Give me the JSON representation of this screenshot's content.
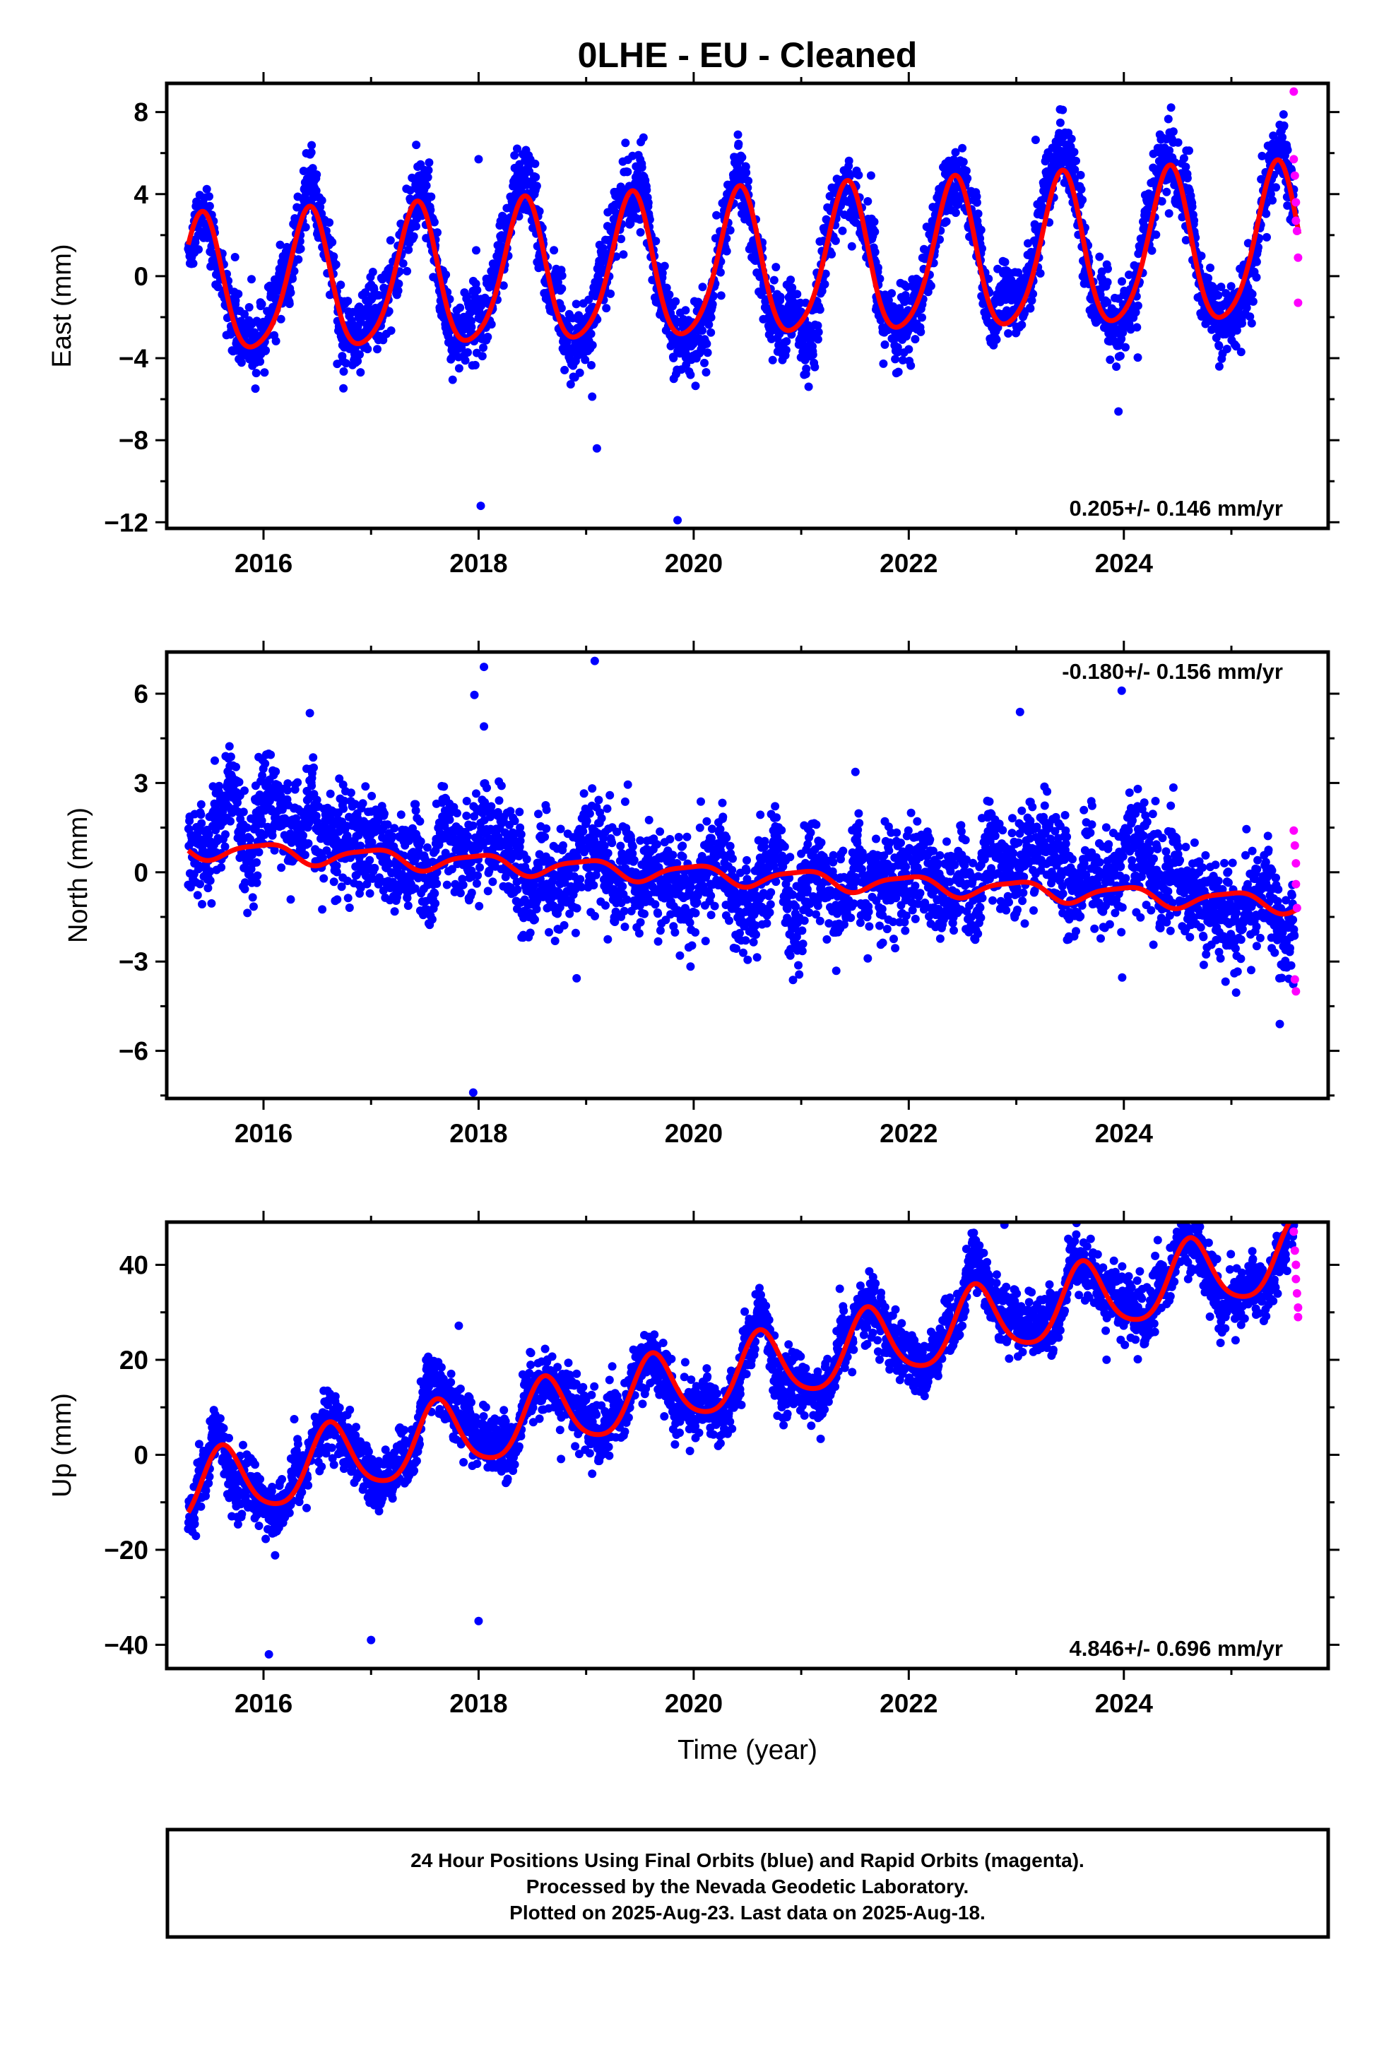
{
  "title": "0LHE  - EU - Cleaned",
  "xlabel": "Time (year)",
  "footer": {
    "line1": "24 Hour Positions Using Final Orbits (blue) and Rapid Orbits (magenta).",
    "line2": "Processed by the Nevada Geodetic Laboratory.",
    "line3": "Plotted on 2025-Aug-23. Last data on 2025-Aug-18."
  },
  "colors": {
    "final": "#0000ff",
    "rapid": "#ff00ff",
    "model": "#ff0000",
    "frame": "#000000"
  },
  "chart_data": [
    {
      "type": "scatter",
      "ylabel": "East (mm)",
      "rate": "0.205+/- 0.146 mm/yr",
      "rate_position": "bottom-right",
      "xlim": [
        2015.1,
        2025.9
      ],
      "ylim": [
        -12.3,
        9.4
      ],
      "xticks": [
        2016,
        2018,
        2020,
        2022,
        2024
      ],
      "yticks": [
        8,
        4,
        0,
        -4,
        -8,
        -12
      ],
      "time_span": [
        2015.3,
        2025.63
      ],
      "model": {
        "offset": -0.7,
        "trend": 0.205,
        "annual_amp": 3.3,
        "annual_peak": 0.42,
        "semiannual_amp": 0.55,
        "semiannual_peak": 0.45,
        "amp_growth": 0.14
      },
      "scatter_sd": 0.95,
      "outliers": [
        [
          2018.0,
          5.7
        ],
        [
          2018.02,
          -11.2
        ],
        [
          2019.85,
          -11.9
        ],
        [
          2017.42,
          6.4
        ],
        [
          2019.1,
          -8.4
        ],
        [
          2023.95,
          -6.6
        ]
      ],
      "rapid_points": [
        [
          2025.58,
          9.0
        ],
        [
          2025.58,
          5.7
        ],
        [
          2025.59,
          4.9
        ],
        [
          2025.6,
          3.6
        ],
        [
          2025.6,
          2.7
        ],
        [
          2025.61,
          2.2
        ],
        [
          2025.62,
          0.9
        ],
        [
          2025.62,
          -1.3
        ]
      ]
    },
    {
      "type": "scatter",
      "ylabel": "North (mm)",
      "rate": "-0.180+/- 0.156 mm/yr",
      "rate_position": "top-right",
      "xlim": [
        2015.1,
        2025.9
      ],
      "ylim": [
        -7.6,
        7.4
      ],
      "xticks": [
        2016,
        2018,
        2020,
        2022,
        2024
      ],
      "yticks": [
        6,
        3,
        0,
        -3,
        -6
      ],
      "time_span": [
        2015.3,
        2025.63
      ],
      "model": {
        "offset": 0.8,
        "trend": -0.18,
        "annual_amp": 0.3,
        "annual_peak": 0.0,
        "semiannual_amp": 0.08,
        "semiannual_peak": 0.2,
        "amp_growth": 0.0
      },
      "scatter_sd": 0.9,
      "outliers": [
        [
          2018.05,
          6.9
        ],
        [
          2018.05,
          4.9
        ],
        [
          2019.08,
          7.1
        ],
        [
          2017.95,
          -7.4
        ],
        [
          2023.98,
          6.1
        ],
        [
          2025.45,
          -5.1
        ]
      ],
      "rapid_points": [
        [
          2025.58,
          1.4
        ],
        [
          2025.59,
          0.9
        ],
        [
          2025.6,
          0.3
        ],
        [
          2025.6,
          -0.4
        ],
        [
          2025.61,
          -1.2
        ],
        [
          2025.59,
          -3.6
        ],
        [
          2025.6,
          -4.0
        ]
      ]
    },
    {
      "type": "scatter",
      "ylabel": "Up (mm)",
      "rate": "4.846+/- 0.696 mm/yr",
      "rate_position": "bottom-right",
      "xlim": [
        2015.1,
        2025.9
      ],
      "ylim": [
        -45,
        49
      ],
      "xticks": [
        2016,
        2018,
        2020,
        2022,
        2024
      ],
      "yticks": [
        40,
        20,
        0,
        -20,
        -40
      ],
      "time_span": [
        2015.3,
        2025.63
      ],
      "model": {
        "offset": -8.0,
        "trend": 4.846,
        "annual_amp": 7.4,
        "annual_peak": 0.62,
        "semiannual_amp": 1.2,
        "semiannual_peak": 0.6,
        "amp_growth": 0.0
      },
      "scatter_sd": 3.4,
      "outliers": [
        [
          2023.6,
          41.5
        ],
        [
          2016.05,
          -42.0
        ],
        [
          2017.0,
          -39.0
        ],
        [
          2018.0,
          -35.0
        ]
      ],
      "rapid_points": [
        [
          2025.58,
          47.0
        ],
        [
          2025.59,
          43.0
        ],
        [
          2025.6,
          40.0
        ],
        [
          2025.6,
          37.0
        ],
        [
          2025.61,
          34.0
        ],
        [
          2025.62,
          31.0
        ],
        [
          2025.62,
          29.0
        ]
      ]
    }
  ]
}
